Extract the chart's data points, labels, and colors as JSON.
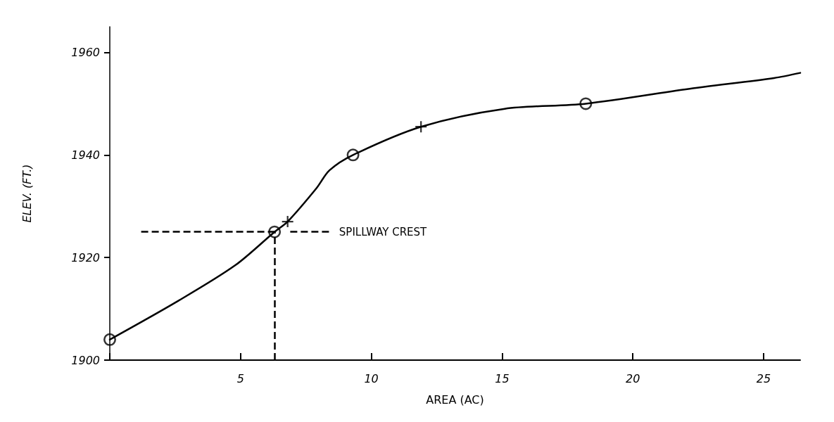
{
  "chart_data": {
    "type": "line",
    "xlabel": "AREA (AC)",
    "ylabel": "ELEV. (FT.)",
    "xlim": [
      0,
      26.4
    ],
    "ylim": [
      1900,
      1965
    ],
    "xticks": [
      {
        "value": 0,
        "label": null
      },
      5,
      10,
      15,
      20,
      25
    ],
    "yticks": [
      1900,
      1920,
      1940,
      1960
    ],
    "grid": false,
    "series": [
      {
        "color": "#000000",
        "marker": "none",
        "x": [
          0,
          2.6,
          4.8,
          6.3,
          6.8,
          7.9,
          8.4,
          9.3,
          11.9,
          15.1,
          18.2,
          22.3,
          25.4,
          26.4
        ],
        "values": [
          1904,
          1911.5,
          1918.5,
          1925,
          1927,
          1933.5,
          1937,
          1940,
          1945.5,
          1949,
          1950,
          1953,
          1955,
          1956
        ]
      },
      {
        "type": "scatter",
        "color": "#000000",
        "marker": "circle",
        "x": [
          0,
          6.3,
          9.3,
          18.2
        ],
        "values": [
          1904,
          1925,
          1940,
          1950
        ]
      },
      {
        "type": "scatter",
        "color": "#000000",
        "marker": "cross",
        "x": [
          6.8,
          11.9
        ],
        "values": [
          1927,
          1945.5
        ]
      }
    ],
    "ref_lines": [
      {
        "axis": "y",
        "value": 1925,
        "label": "SPILLWAY CREST",
        "line_style": "dashed"
      },
      {
        "axis": "x",
        "value": 6.3,
        "line_style": "dashed"
      }
    ]
  }
}
